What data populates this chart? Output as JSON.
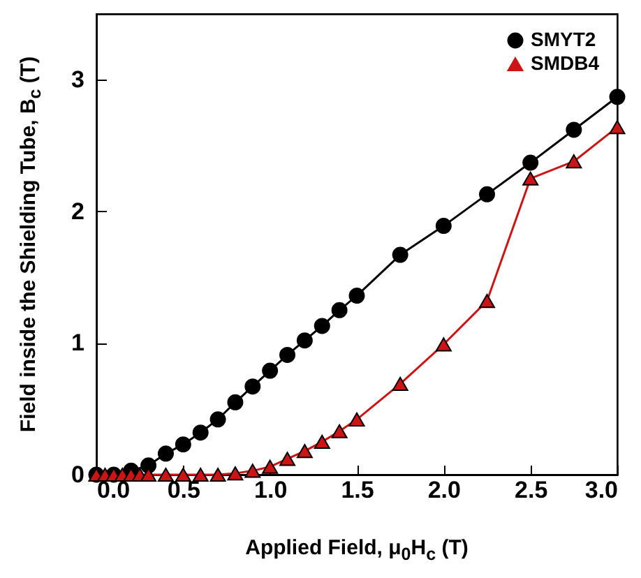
{
  "chart_data": {
    "type": "line",
    "xlabel": "Applied Field, μ$_{0}$H$_{c}$ (T)",
    "ylabel": "Field inside the Shielding Tube, B$_{c}$ (T)",
    "xlim": [
      0,
      3
    ],
    "ylim": [
      0,
      3.5
    ],
    "xticks": [
      {
        "value": 0,
        "label": "0.0"
      },
      {
        "value": 0.5,
        "label": "0.5"
      },
      {
        "value": 1,
        "label": "1.0"
      },
      {
        "value": 1.5,
        "label": "1.5"
      },
      {
        "value": 2,
        "label": "2.0"
      },
      {
        "value": 2.5,
        "label": "2.5"
      },
      {
        "value": 3,
        "label": "3.0"
      }
    ],
    "yticks": [
      0,
      1,
      2,
      3
    ],
    "legend": "top right",
    "grid": false,
    "series": [
      {
        "name": "SMYT2",
        "color": "#000000",
        "marker": "circle",
        "x": [
          0,
          0.1,
          0.2,
          0.3,
          0.4,
          0.5,
          0.6,
          0.7,
          0.8,
          0.9,
          1.0,
          1.1,
          1.2,
          1.3,
          1.4,
          1.5,
          1.75,
          2.0,
          2.25,
          2.5,
          2.75,
          3.0
        ],
        "values": [
          0,
          0,
          0.03,
          0.07,
          0.16,
          0.23,
          0.32,
          0.42,
          0.55,
          0.67,
          0.79,
          0.91,
          1.02,
          1.13,
          1.25,
          1.36,
          1.67,
          1.89,
          2.13,
          2.37,
          2.62,
          2.87
        ]
      },
      {
        "name": "SMDB4",
        "color": "#cc1414",
        "marker": "triangle",
        "x": [
          0,
          0.05,
          0.1,
          0.15,
          0.2,
          0.25,
          0.3,
          0.4,
          0.5,
          0.6,
          0.7,
          0.8,
          0.9,
          1.0,
          1.1,
          1.2,
          1.3,
          1.4,
          1.5,
          1.75,
          2.0,
          2.25,
          2.5,
          2.75,
          3.0
        ],
        "values": [
          0,
          0,
          0,
          0,
          0,
          0,
          0,
          0,
          0,
          0,
          0,
          0.01,
          0.03,
          0.06,
          0.12,
          0.18,
          0.25,
          0.33,
          0.42,
          0.69,
          0.99,
          1.32,
          2.25,
          2.38,
          2.64
        ]
      }
    ]
  }
}
